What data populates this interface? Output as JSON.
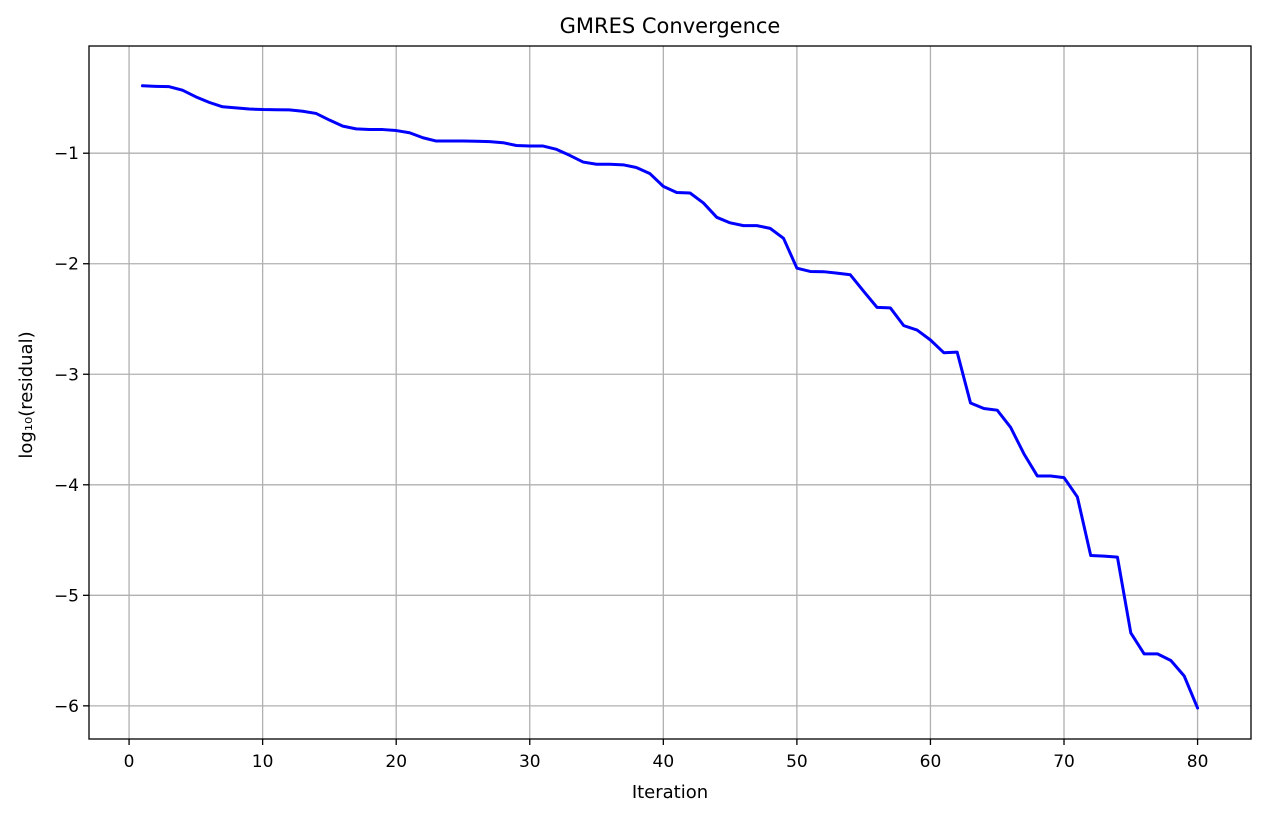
{
  "chart_data": {
    "type": "line",
    "title": "GMRES Convergence",
    "xlabel": "Iteration",
    "ylabel": "log₁₀(residual)",
    "xlim": [
      -3,
      84
    ],
    "ylim": [
      -6.3,
      -0.03
    ],
    "xticks": [
      0,
      10,
      20,
      30,
      40,
      50,
      60,
      70,
      80
    ],
    "xtick_labels": [
      "0",
      "10",
      "20",
      "30",
      "40",
      "50",
      "60",
      "70",
      "80"
    ],
    "yticks": [
      -1,
      -2,
      -3,
      -4,
      -5,
      -6
    ],
    "ytick_labels": [
      "−1",
      "−2",
      "−3",
      "−4",
      "−5",
      "−6"
    ],
    "grid": true,
    "series": [
      {
        "color": "#0000ff",
        "x": [
          1,
          2,
          3,
          4,
          5,
          6,
          7,
          8,
          9,
          10,
          11,
          12,
          13,
          14,
          15,
          16,
          17,
          18,
          19,
          20,
          21,
          22,
          23,
          24,
          25,
          26,
          27,
          28,
          29,
          30,
          31,
          32,
          33,
          34,
          35,
          36,
          37,
          38,
          39,
          40,
          41,
          42,
          43,
          44,
          45,
          46,
          47,
          48,
          49,
          50,
          51,
          52,
          53,
          54,
          55,
          56,
          57,
          58,
          59,
          60,
          61,
          62,
          63,
          64,
          65,
          66,
          67,
          68,
          69,
          70,
          71,
          72,
          73,
          74,
          75,
          76,
          77,
          78,
          79,
          80
        ],
        "y": [
          -0.39,
          -0.395,
          -0.398,
          -0.43,
          -0.49,
          -0.54,
          -0.58,
          -0.59,
          -0.6,
          -0.605,
          -0.607,
          -0.608,
          -0.62,
          -0.64,
          -0.7,
          -0.755,
          -0.78,
          -0.785,
          -0.786,
          -0.795,
          -0.815,
          -0.86,
          -0.89,
          -0.89,
          -0.89,
          -0.892,
          -0.895,
          -0.905,
          -0.93,
          -0.935,
          -0.935,
          -0.965,
          -1.02,
          -1.08,
          -1.1,
          -1.1,
          -1.105,
          -1.13,
          -1.185,
          -1.3,
          -1.355,
          -1.36,
          -1.45,
          -1.58,
          -1.63,
          -1.655,
          -1.655,
          -1.68,
          -1.77,
          -2.04,
          -2.07,
          -2.072,
          -2.085,
          -2.1,
          -2.25,
          -2.395,
          -2.4,
          -2.56,
          -2.6,
          -2.69,
          -2.805,
          -2.8,
          -3.26,
          -3.31,
          -3.325,
          -3.48,
          -3.72,
          -3.92,
          -3.92,
          -3.935,
          -4.11,
          -4.64,
          -4.645,
          -4.655,
          -5.34,
          -5.53,
          -5.53,
          -5.59,
          -5.73,
          -6.02
        ]
      }
    ]
  }
}
